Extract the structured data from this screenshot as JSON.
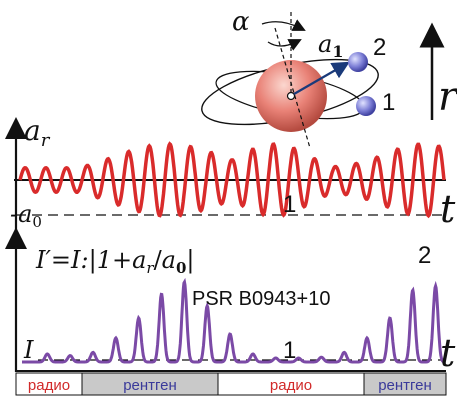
{
  "colors": {
    "wave": "#d92b2b",
    "purple": "#7b4aa6",
    "axis": "#111111",
    "shade": "#c9c9c9",
    "radio_text": "#d12a2a",
    "xray_text": "#3a3a9a",
    "sphere": "#e98277",
    "satellite": "#7d7fd6",
    "arrow_blue": "#1a3a7a"
  },
  "top": {
    "labels": {
      "alpha": "α",
      "a_base": "a",
      "a_sub": "1",
      "num2": "2",
      "num1": "1",
      "r": "r"
    }
  },
  "plot1": {
    "ylabel_base": "a",
    "ylabel_sub": "r",
    "neg_label_base": "-a",
    "neg_label_sub": "0",
    "xlabel": "t",
    "curve_label": "1"
  },
  "plot2": {
    "formula_prefix": "I′=I:|1+",
    "formula_a1": "a",
    "formula_a1_sub": "r",
    "formula_slash": "/",
    "formula_a2": "a",
    "formula_a2_sub": "0",
    "formula_end": "|",
    "num2": "2",
    "pulsar": "PSR B0943+10",
    "baseline_label": "I",
    "curve_label": "1",
    "xlabel": "t",
    "bands": [
      "радио",
      "рентген",
      "радио",
      "рентген"
    ]
  },
  "chart_data": [
    {
      "type": "line",
      "xlabel": "t",
      "ylabel": "a_r",
      "series": [
        {
          "name": "1",
          "description": "amplitude-modulated oscillation, two wave packets"
        }
      ],
      "envelope_peaks": [
        0.35,
        0.6
      ]
    },
    {
      "type": "line",
      "xlabel": "t",
      "ylabel": "I′",
      "series": [
        {
          "name": "1",
          "peaks": [
            0.1,
            0.08,
            0.12,
            0.3,
            0.55,
            0.85,
            1.0,
            0.7,
            0.35,
            0.1,
            0.05,
            0.05,
            0.06,
            0.12,
            0.3,
            0.55,
            0.9,
            0.95
          ]
        }
      ]
    }
  ]
}
